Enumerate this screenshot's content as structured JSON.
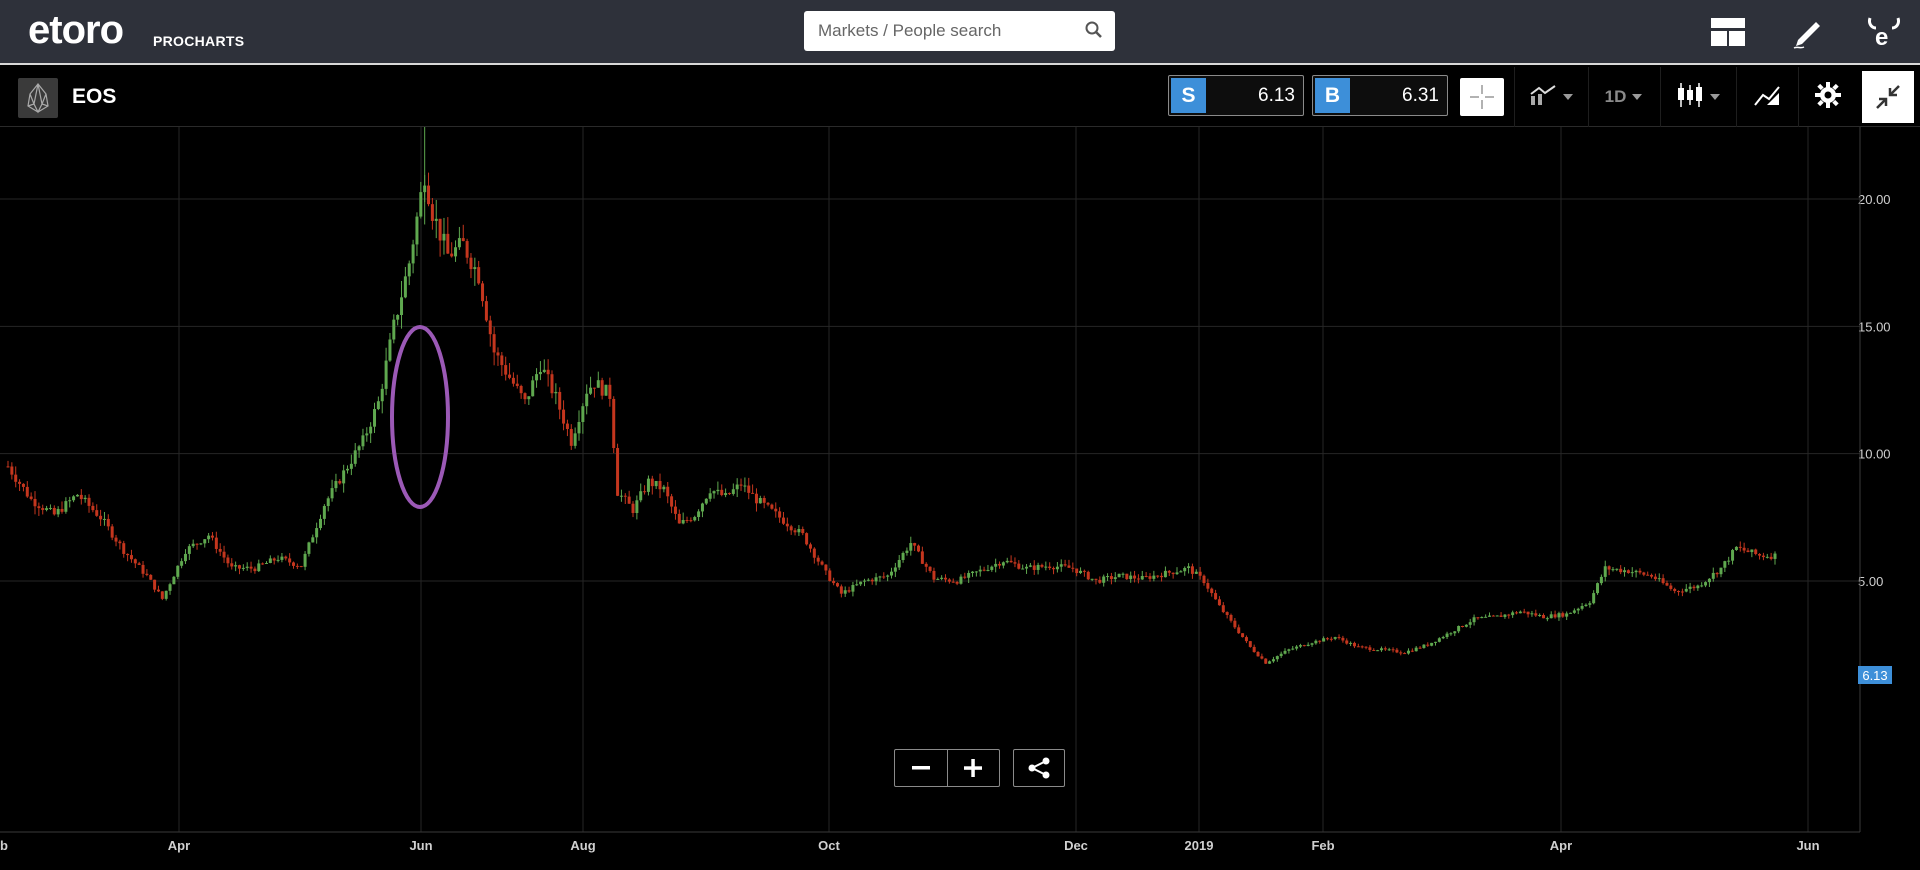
{
  "header": {
    "brand": "etoro",
    "product": "PROCHARTS",
    "search_placeholder": "Markets / People search"
  },
  "instrument": {
    "name": "EOS",
    "sell_label": "S",
    "sell_price": "6.13",
    "buy_label": "B",
    "buy_price": "6.31",
    "timeframe": "1D"
  },
  "colors": {
    "up": "#5fa84f",
    "down": "#c4361e",
    "accent": "#3d8fd9",
    "annotation": "#9b59b6"
  },
  "chart_data": {
    "type": "candlestick",
    "y_ticks": [
      "20.00",
      "15.00",
      "10.00",
      "5.00"
    ],
    "x_ticks": [
      "Apr",
      "Jun",
      "Aug",
      "Oct",
      "Dec",
      "2019",
      "Feb",
      "Apr",
      "Jun"
    ],
    "partial_x_label": "b",
    "ylim": [
      1.5,
      23.5
    ],
    "last_price": "6.13",
    "close_path": [
      [
        9.5,
        0
      ],
      [
        8.2,
        6
      ],
      [
        7.6,
        12
      ],
      [
        8.4,
        18
      ],
      [
        7.5,
        24
      ],
      [
        6.2,
        30
      ],
      [
        5.2,
        36
      ],
      [
        4.3,
        40
      ],
      [
        6.2,
        46
      ],
      [
        6.8,
        52
      ],
      [
        5.5,
        58
      ],
      [
        5.5,
        64
      ],
      [
        5.9,
        70
      ],
      [
        5.6,
        76
      ],
      [
        8.0,
        82
      ],
      [
        9.0,
        86
      ],
      [
        10.5,
        92
      ],
      [
        12.0,
        96
      ],
      [
        15.0,
        100
      ],
      [
        17.5,
        104
      ],
      [
        21.0,
        108
      ],
      [
        19.5,
        110
      ],
      [
        17.8,
        114
      ],
      [
        18.2,
        118
      ],
      [
        17.0,
        122
      ],
      [
        14.0,
        126
      ],
      [
        13.0,
        130
      ],
      [
        12.0,
        134
      ],
      [
        13.5,
        138
      ],
      [
        12.2,
        142
      ],
      [
        10.5,
        146
      ],
      [
        12.5,
        150
      ],
      [
        12.8,
        152
      ],
      [
        12.3,
        156
      ],
      [
        8.5,
        158
      ],
      [
        7.8,
        162
      ],
      [
        8.9,
        166
      ],
      [
        8.6,
        170
      ],
      [
        7.2,
        174
      ],
      [
        7.6,
        178
      ],
      [
        8.6,
        182
      ],
      [
        8.3,
        186
      ],
      [
        8.8,
        190
      ],
      [
        8.2,
        194
      ],
      [
        7.5,
        200
      ],
      [
        6.8,
        206
      ],
      [
        5.3,
        212
      ],
      [
        4.5,
        216
      ],
      [
        5.0,
        222
      ],
      [
        5.2,
        228
      ],
      [
        6.5,
        234
      ],
      [
        5.1,
        240
      ],
      [
        5.0,
        246
      ],
      [
        5.4,
        252
      ],
      [
        5.8,
        258
      ],
      [
        5.5,
        264
      ],
      [
        5.6,
        270
      ],
      [
        5.5,
        276
      ],
      [
        5.0,
        282
      ],
      [
        5.2,
        288
      ],
      [
        5.1,
        294
      ],
      [
        5.3,
        300
      ],
      [
        5.5,
        306
      ],
      [
        5.0,
        310
      ],
      [
        4.0,
        314
      ],
      [
        3.2,
        318
      ],
      [
        2.4,
        322
      ],
      [
        1.8,
        326
      ],
      [
        2.3,
        332
      ],
      [
        2.6,
        338
      ],
      [
        2.8,
        344
      ],
      [
        2.4,
        350
      ],
      [
        2.3,
        356
      ],
      [
        2.2,
        362
      ],
      [
        2.5,
        368
      ],
      [
        3.0,
        374
      ],
      [
        3.5,
        380
      ],
      [
        3.6,
        386
      ],
      [
        3.8,
        392
      ],
      [
        3.6,
        398
      ],
      [
        3.7,
        404
      ],
      [
        4.2,
        410
      ],
      [
        5.5,
        414
      ],
      [
        5.4,
        420
      ],
      [
        5.2,
        426
      ],
      [
        4.6,
        432
      ],
      [
        4.8,
        438
      ],
      [
        5.5,
        444
      ],
      [
        6.3,
        448
      ],
      [
        6.0,
        454
      ],
      [
        6.0,
        458
      ]
    ]
  }
}
